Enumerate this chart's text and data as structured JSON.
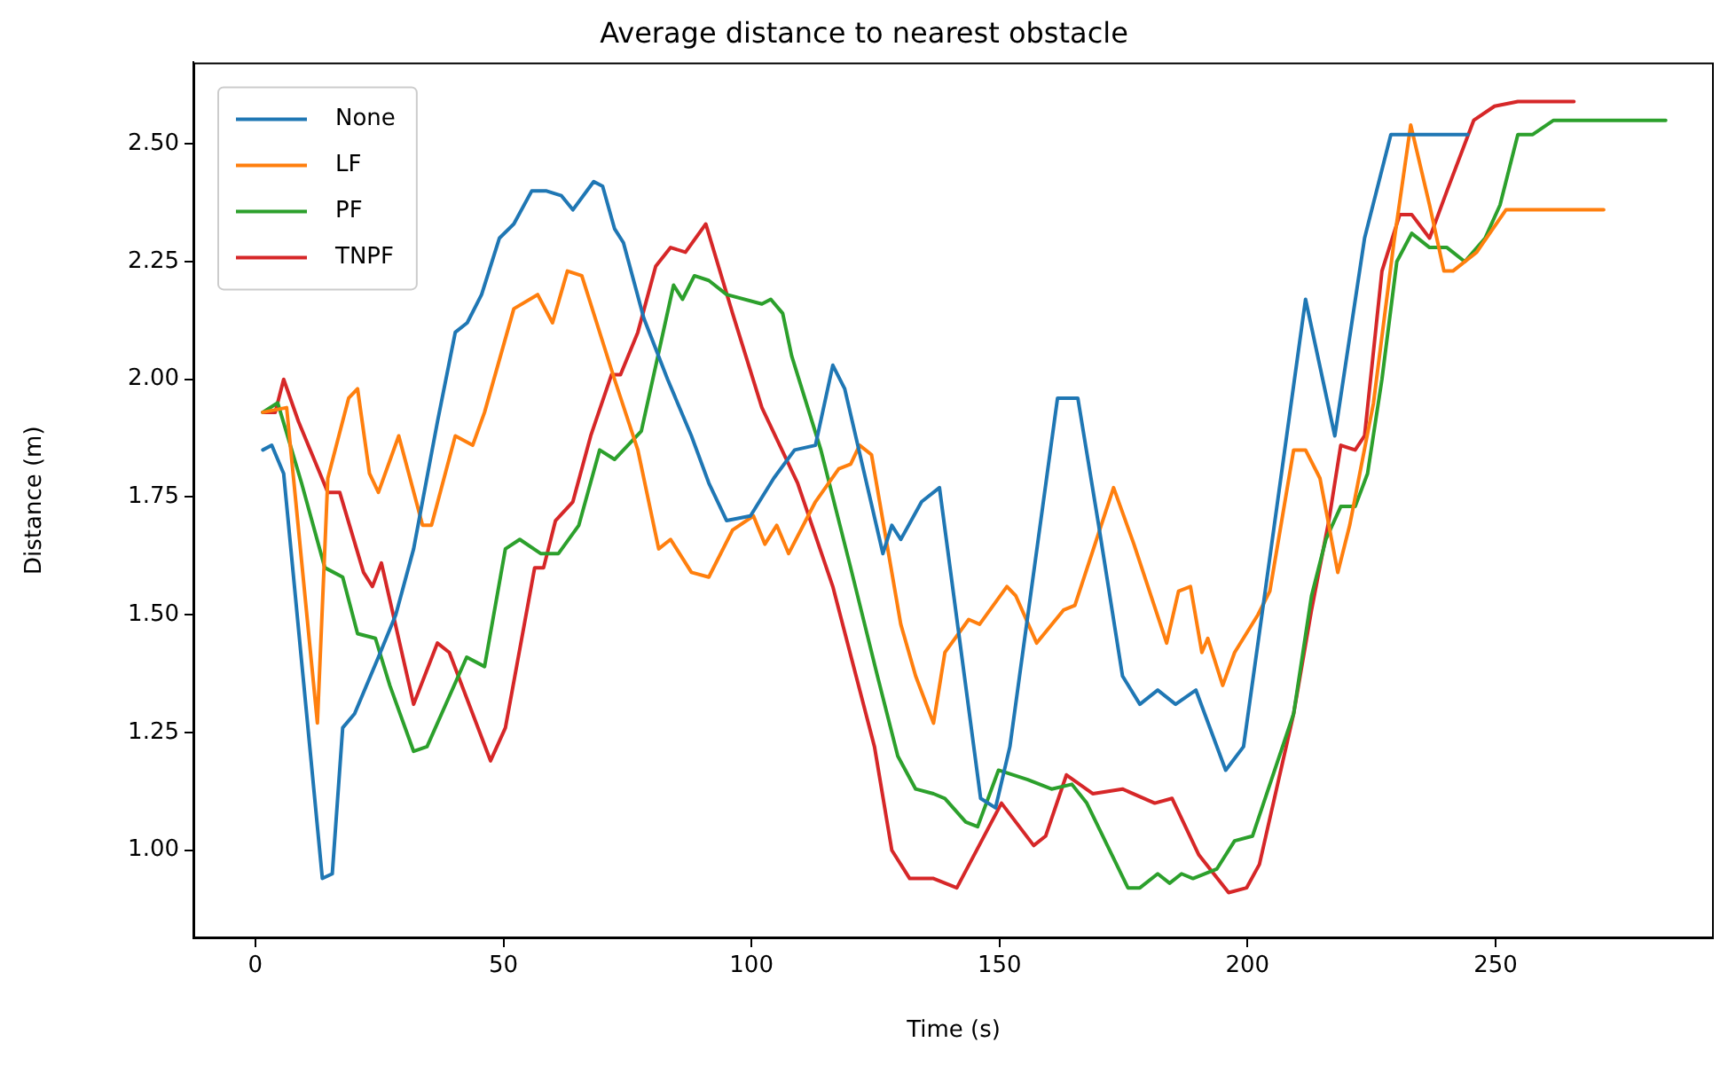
{
  "chart_data": {
    "type": "line",
    "title": "Average distance to nearest obstacle",
    "xlabel": "Time (s)",
    "ylabel": "Distance (m)",
    "xlim": [
      -12.5,
      294
    ],
    "xticks": [
      0,
      50,
      100,
      150,
      200,
      250
    ],
    "ylim": [
      0.813,
      2.673
    ],
    "yticks": [
      {
        "value": 1,
        "label": "1.00"
      },
      {
        "value": 1.25,
        "label": "1.25"
      },
      {
        "value": 1.5,
        "label": "1.50"
      },
      {
        "value": 1.75,
        "label": "1.75"
      },
      {
        "value": 2,
        "label": "2.00"
      },
      {
        "value": 2.25,
        "label": "2.25"
      },
      {
        "value": 2.5,
        "label": "2.50"
      }
    ],
    "grid": false,
    "legend": "top left",
    "marker": "none",
    "line_style": "solid",
    "series": [
      {
        "name": "None",
        "color": "#1f77b4",
        "x": [
          1.5,
          3.3,
          5.7,
          13.5,
          15.5,
          17.6,
          20,
          24.8,
          28.3,
          31.9,
          36.7,
          40.3,
          42.7,
          45.6,
          49.2,
          52.1,
          55.7,
          58.7,
          61.7,
          64,
          68.2,
          70,
          72.4,
          74.2,
          78.3,
          83.1,
          87.9,
          91.4,
          95,
          99.8,
          104.5,
          108.7,
          112.9,
          116.4,
          118.8,
          126.5,
          128.3,
          130.1,
          134.3,
          137.9,
          146.2,
          149.2,
          152.1,
          161.7,
          165.8,
          170,
          174.8,
          178.3,
          181.9,
          185.5,
          189.6,
          195.6,
          199.2,
          203.3,
          211.7,
          217.6,
          223.6,
          228.9,
          234.3,
          244.4
        ],
        "values": [
          1.85,
          1.86,
          1.8,
          0.94,
          0.95,
          1.26,
          1.29,
          1.41,
          1.5,
          1.64,
          1.91,
          2.1,
          2.12,
          2.18,
          2.3,
          2.33,
          2.4,
          2.4,
          2.39,
          2.36,
          2.42,
          2.41,
          2.32,
          2.29,
          2.13,
          2,
          1.88,
          1.78,
          1.7,
          1.71,
          1.79,
          1.85,
          1.86,
          2.03,
          1.98,
          1.63,
          1.69,
          1.66,
          1.74,
          1.77,
          1.11,
          1.09,
          1.22,
          1.96,
          1.96,
          1.69,
          1.37,
          1.31,
          1.34,
          1.31,
          1.34,
          1.17,
          1.22,
          1.53,
          2.17,
          1.88,
          2.3,
          2.52,
          2.52,
          2.52
        ]
      },
      {
        "name": "LF",
        "color": "#ff7f0e",
        "x": [
          1.5,
          6.3,
          12.5,
          14.6,
          18.8,
          20.6,
          23,
          24.8,
          28.9,
          33.7,
          35.5,
          40.3,
          43.8,
          46.2,
          52.1,
          56.9,
          59.9,
          62.9,
          65.8,
          72.4,
          77.1,
          81.3,
          83.7,
          87.9,
          91.4,
          96.2,
          100.4,
          102.7,
          105.1,
          107.5,
          112.9,
          117.6,
          120,
          121.8,
          124.2,
          130.1,
          133.1,
          136.7,
          139,
          143.8,
          146,
          151.5,
          153.3,
          157.5,
          162.9,
          165.2,
          173,
          177.1,
          183.7,
          186.1,
          188.5,
          190.8,
          192,
          195,
          197.4,
          202.1,
          204.5,
          209.3,
          211.7,
          214.6,
          218.2,
          220.6,
          225.4,
          229.5,
          232.9,
          236.7,
          239.6,
          241.4,
          246.2,
          252.1,
          271.8
        ],
        "values": [
          1.93,
          1.94,
          1.27,
          1.79,
          1.96,
          1.98,
          1.8,
          1.76,
          1.88,
          1.69,
          1.69,
          1.88,
          1.86,
          1.93,
          2.15,
          2.18,
          2.12,
          2.23,
          2.22,
          2,
          1.85,
          1.64,
          1.66,
          1.59,
          1.58,
          1.68,
          1.71,
          1.65,
          1.69,
          1.63,
          1.74,
          1.81,
          1.82,
          1.86,
          1.84,
          1.48,
          1.37,
          1.27,
          1.42,
          1.49,
          1.48,
          1.56,
          1.54,
          1.44,
          1.51,
          1.52,
          1.77,
          1.65,
          1.44,
          1.55,
          1.56,
          1.42,
          1.45,
          1.35,
          1.42,
          1.5,
          1.55,
          1.85,
          1.85,
          1.79,
          1.59,
          1.69,
          1.95,
          2.29,
          2.54,
          2.37,
          2.23,
          2.23,
          2.27,
          2.36,
          2.36
        ]
      },
      {
        "name": "PF",
        "color": "#2ca02c",
        "x": [
          1.5,
          4.5,
          9.3,
          14,
          17.6,
          20.6,
          24.2,
          27.1,
          31.9,
          34.6,
          42.6,
          46.2,
          50.4,
          53.3,
          57.5,
          61.1,
          65.2,
          69.4,
          72.4,
          77.8,
          84.3,
          86.1,
          88.5,
          91.4,
          95,
          102.1,
          103.9,
          106.3,
          108.1,
          114,
          120,
          125.4,
          129.5,
          133.1,
          136.7,
          139,
          143.2,
          145.6,
          149.8,
          155.7,
          160.5,
          164.6,
          167.6,
          175.9,
          178.3,
          181.9,
          184.3,
          186.7,
          189,
          193.8,
          197.4,
          201,
          209.3,
          212.9,
          215.8,
          218.8,
          221.7,
          224.2,
          227.1,
          230.1,
          233.1,
          236.7,
          240.2,
          243.8,
          247.9,
          250.9,
          254.5,
          257.5,
          261.7,
          267.6,
          284.3
        ],
        "values": [
          1.93,
          1.95,
          1.78,
          1.6,
          1.58,
          1.46,
          1.45,
          1.35,
          1.21,
          1.22,
          1.41,
          1.39,
          1.64,
          1.66,
          1.63,
          1.63,
          1.69,
          1.85,
          1.83,
          1.89,
          2.2,
          2.17,
          2.22,
          2.21,
          2.18,
          2.16,
          2.17,
          2.14,
          2.05,
          1.85,
          1.6,
          1.37,
          1.2,
          1.13,
          1.12,
          1.11,
          1.06,
          1.05,
          1.17,
          1.15,
          1.13,
          1.14,
          1.1,
          0.92,
          0.92,
          0.95,
          0.93,
          0.95,
          0.94,
          0.96,
          1.02,
          1.03,
          1.29,
          1.54,
          1.66,
          1.73,
          1.73,
          1.8,
          2,
          2.25,
          2.31,
          2.28,
          2.28,
          2.25,
          2.3,
          2.37,
          2.52,
          2.52,
          2.55,
          2.55,
          2.55
        ]
      },
      {
        "name": "TNPF",
        "color": "#d62728",
        "x": [
          1.5,
          4,
          5.7,
          8.7,
          14.6,
          17,
          21.8,
          23.6,
          25.4,
          31.9,
          36.7,
          39.1,
          47.4,
          50.4,
          56.3,
          58.1,
          60.5,
          64,
          67.6,
          71.8,
          73.6,
          77.1,
          80.7,
          83.7,
          86.7,
          90.8,
          96.2,
          102.1,
          109.3,
          116.4,
          124.8,
          128.3,
          131.9,
          136.7,
          141.4,
          150.4,
          156.9,
          159.3,
          163.5,
          168.8,
          174.8,
          181.3,
          184.8,
          190.2,
          196.2,
          199.8,
          202.4,
          209.3,
          212.9,
          216.4,
          218.8,
          221.7,
          223.6,
          227.1,
          230.7,
          233.1,
          236.7,
          240.2,
          245.6,
          249.8,
          254.5,
          265.8
        ],
        "values": [
          1.93,
          1.93,
          2,
          1.91,
          1.76,
          1.76,
          1.59,
          1.56,
          1.61,
          1.31,
          1.44,
          1.42,
          1.19,
          1.26,
          1.6,
          1.6,
          1.7,
          1.74,
          1.88,
          2.01,
          2.01,
          2.1,
          2.24,
          2.28,
          2.27,
          2.33,
          2.14,
          1.94,
          1.78,
          1.56,
          1.22,
          1,
          0.94,
          0.94,
          0.92,
          1.1,
          1.01,
          1.03,
          1.16,
          1.12,
          1.13,
          1.1,
          1.11,
          0.99,
          0.91,
          0.92,
          0.97,
          1.29,
          1.51,
          1.7,
          1.86,
          1.85,
          1.88,
          2.23,
          2.35,
          2.35,
          2.3,
          2.4,
          2.55,
          2.58,
          2.59,
          2.59
        ]
      }
    ]
  }
}
